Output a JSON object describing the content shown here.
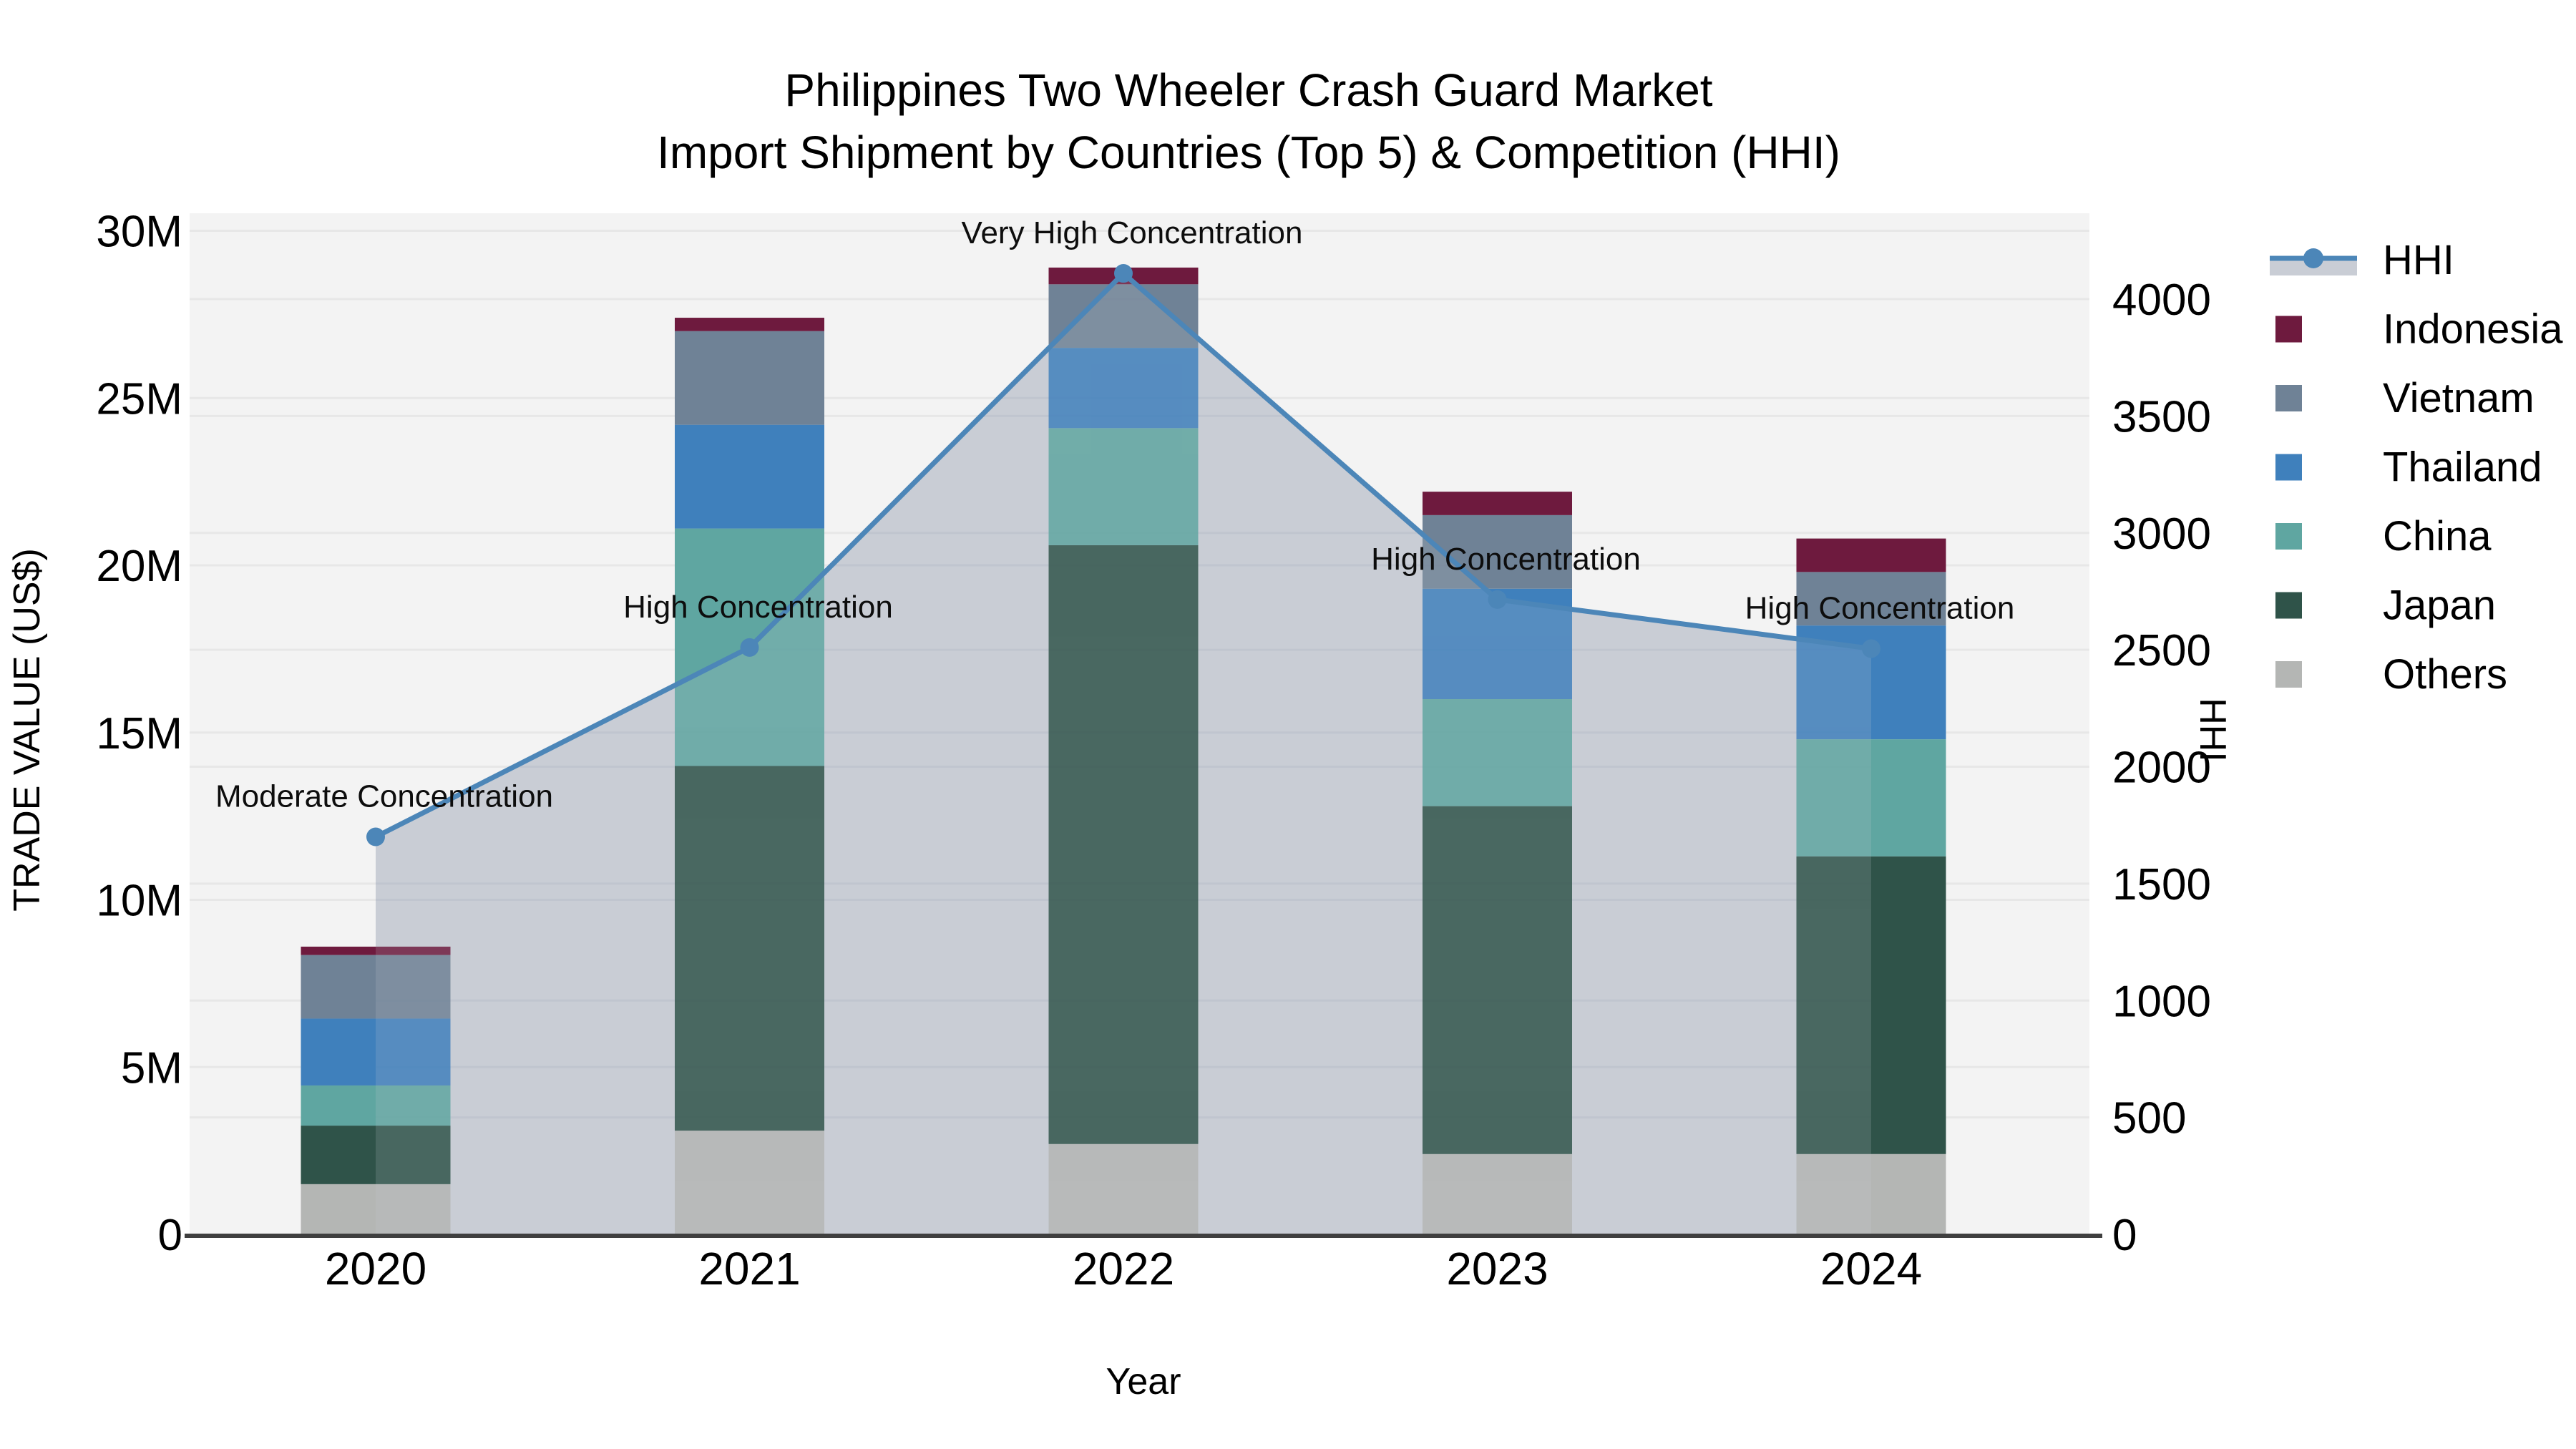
{
  "title": {
    "line1": "Philippines Two Wheeler Crash Guard Market",
    "line2": "Import Shipment by Countries (Top 5) & Competition (HHI)"
  },
  "axes": {
    "x": {
      "title": "Year",
      "categories": [
        "2020",
        "2021",
        "2022",
        "2023",
        "2024"
      ]
    },
    "y_left": {
      "title": "TRADE VALUE (US$)",
      "ticks": [
        "0",
        "5M",
        "10M",
        "15M",
        "20M",
        "25M",
        "30M"
      ],
      "tick_values": [
        0,
        5,
        10,
        15,
        20,
        25,
        30
      ],
      "max": 30
    },
    "y_right": {
      "title": "HHI",
      "ticks": [
        "0",
        "500",
        "1000",
        "1500",
        "2000",
        "2500",
        "3000",
        "3500",
        "4000"
      ],
      "tick_values": [
        0,
        500,
        1000,
        1500,
        2000,
        2500,
        3000,
        3500,
        4000
      ],
      "max": 4000
    }
  },
  "legend": {
    "items": [
      {
        "label": "HHI",
        "type": "line",
        "color": "#4C86B8"
      },
      {
        "label": "Indonesia",
        "type": "swatch",
        "color": "#6E1A3E"
      },
      {
        "label": "Vietnam",
        "type": "swatch",
        "color": "#6F8296"
      },
      {
        "label": "Thailand",
        "type": "swatch",
        "color": "#3F80BC"
      },
      {
        "label": "China",
        "type": "swatch",
        "color": "#5FA6A1"
      },
      {
        "label": "Japan",
        "type": "swatch",
        "color": "#2F5349"
      },
      {
        "label": "Others",
        "type": "swatch",
        "color": "#B4B6B4"
      }
    ]
  },
  "chart_data": {
    "type": "bar+line",
    "bar_type": "stacked",
    "categories": [
      "2020",
      "2021",
      "2022",
      "2023",
      "2024"
    ],
    "bar_value_unit": "million US$",
    "series": [
      {
        "name": "Others",
        "color": "#B4B6B4",
        "values": [
          1.5,
          3.1,
          2.7,
          2.4,
          2.4
        ]
      },
      {
        "name": "Japan",
        "color": "#2F5349",
        "values": [
          1.75,
          10.9,
          17.9,
          10.4,
          8.9
        ]
      },
      {
        "name": "China",
        "color": "#5FA6A1",
        "values": [
          1.2,
          7.1,
          3.5,
          3.2,
          3.5
        ]
      },
      {
        "name": "Thailand",
        "color": "#3F80BC",
        "values": [
          2.0,
          3.1,
          2.4,
          3.3,
          3.4
        ]
      },
      {
        "name": "Vietnam",
        "color": "#6F8296",
        "values": [
          1.9,
          2.8,
          1.9,
          2.2,
          1.6
        ]
      },
      {
        "name": "Indonesia",
        "color": "#6E1A3E",
        "values": [
          0.25,
          0.4,
          0.5,
          0.7,
          1.0
        ]
      }
    ],
    "bar_totals": [
      8.6,
      27.4,
      28.9,
      22.2,
      20.8
    ],
    "line_series": {
      "name": "HHI",
      "color": "#4C86B8",
      "area_color": "#C9CDD5",
      "values": [
        1700,
        2510,
        4110,
        2715,
        2505
      ]
    },
    "annotations": [
      {
        "category": "2020",
        "text": "Moderate Concentration"
      },
      {
        "category": "2021",
        "text": "High Concentration"
      },
      {
        "category": "2022",
        "text": "Very High Concentration"
      },
      {
        "category": "2023",
        "text": "High Concentration"
      },
      {
        "category": "2024",
        "text": "High Concentration"
      }
    ],
    "xlabel": "Year",
    "ylabel_left": "TRADE VALUE (US$)",
    "ylabel_right": "HHI",
    "ylim_left": [
      0,
      30
    ],
    "ylim_right": [
      0,
      4000
    ],
    "grid": true,
    "legend_position": "right"
  },
  "colors": {
    "plot_background": "#F3F3F3",
    "gridline": "#E7E7E7",
    "gridline_over_area": "#C0C5CF",
    "axis_line": "#3F3F3F",
    "hhi_line": "#4C86B8",
    "hhi_area": "#C9CDD5",
    "text": "#000000"
  }
}
